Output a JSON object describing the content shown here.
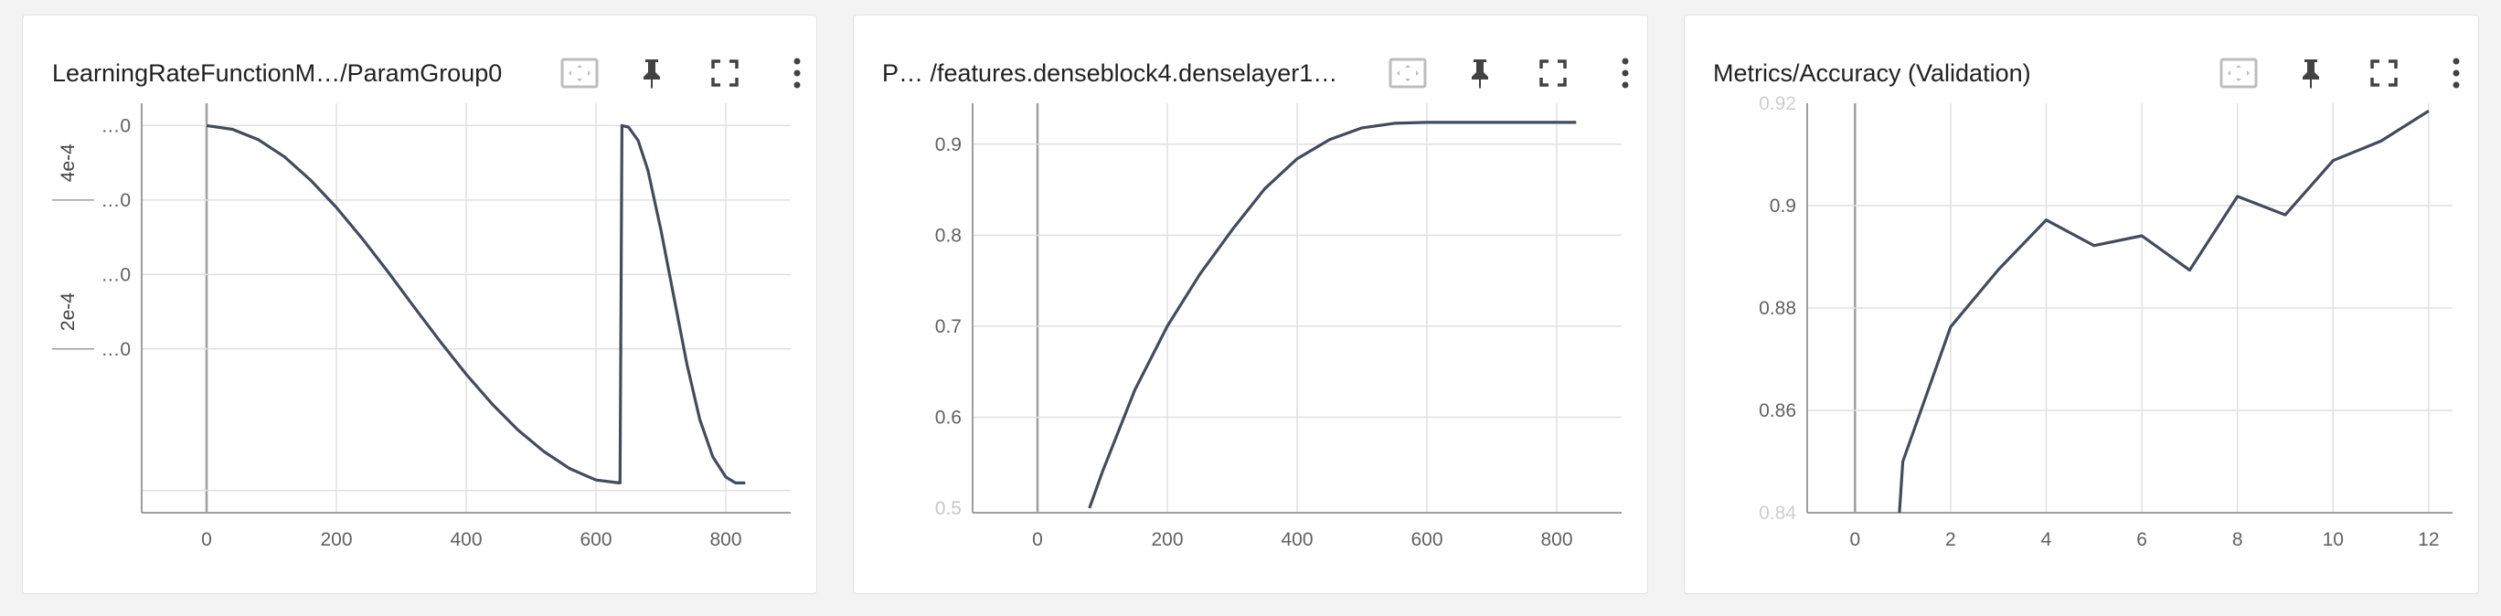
{
  "cards": [
    {
      "title": "LearningRateFunctionM…/ParamGroup0"
    },
    {
      "title": "P…  /features.denseblock4.denselayer1…"
    },
    {
      "title": "Metrics/Accuracy (Validation)"
    }
  ],
  "chart_data": [
    {
      "type": "line",
      "title": "LearningRateFunctionM…/ParamGroup0",
      "x_ticks": [
        "0",
        "200",
        "400",
        "600",
        "800"
      ],
      "y_tick_labels": [
        "…0",
        "…0",
        "…0",
        "…0"
      ],
      "y_side_labels": [
        "4e-4",
        "2e-4"
      ],
      "xlim": [
        -100,
        900
      ],
      "ylim": [
        -2e-05,
        0.00053
      ],
      "grid": true,
      "series": [
        {
          "x": [
            0,
            40,
            80,
            120,
            160,
            200,
            240,
            280,
            320,
            360,
            400,
            440,
            480,
            520,
            560,
            600,
            636,
            637,
            640,
            650,
            665,
            680,
            700,
            720,
            740,
            760,
            780,
            800,
            815,
            830
          ],
          "y": [
            0.0005,
            0.000495,
            0.000481,
            0.000458,
            0.000427,
            0.00039,
            0.000348,
            0.000303,
            0.000256,
            0.00021,
            0.000166,
            0.000126,
            9.1e-05,
            6.2e-05,
            3.9e-05,
            2.4e-05,
            2e-05,
            2e-05,
            0.0005,
            0.000498,
            0.00048,
            0.00044,
            0.00036,
            0.00027,
            0.00018,
            0.000105,
            5.5e-05,
            2.8e-05,
            2e-05,
            2e-05
          ]
        }
      ]
    },
    {
      "type": "line",
      "title": "P…  /features.denseblock4.denselayer1…",
      "x_ticks": [
        "0",
        "200",
        "400",
        "600",
        "800"
      ],
      "y_ticks": [
        0.6,
        0.7,
        0.8,
        0.9
      ],
      "y_cut_label": "0.5",
      "xlim": [
        -100,
        900
      ],
      "ylim": [
        0.495,
        0.945
      ],
      "grid": true,
      "series": [
        {
          "x": [
            80,
            100,
            150,
            200,
            250,
            300,
            350,
            400,
            450,
            500,
            550,
            600,
            700,
            830
          ],
          "y": [
            0.5,
            0.54,
            0.63,
            0.7,
            0.757,
            0.806,
            0.851,
            0.884,
            0.905,
            0.918,
            0.923,
            0.924,
            0.924,
            0.924
          ]
        }
      ]
    },
    {
      "type": "line",
      "title": "Metrics/Accuracy (Validation)",
      "x_ticks": [
        "0",
        "2",
        "4",
        "6",
        "8",
        "10",
        "12"
      ],
      "y_ticks": [
        0.86,
        0.88,
        0.9
      ],
      "y_cut_labels": [
        "0.84",
        "0.92"
      ],
      "xlim": [
        -1,
        12.5
      ],
      "ylim": [
        0.84,
        0.92
      ],
      "grid": true,
      "series": [
        {
          "x": [
            0.93,
            1,
            2,
            3,
            4,
            5,
            6,
            7,
            8,
            9,
            10,
            11,
            12
          ],
          "y": [
            0.84,
            0.85,
            0.8763,
            0.8875,
            0.8972,
            0.8922,
            0.8941,
            0.8874,
            0.9018,
            0.8982,
            0.9088,
            0.9126,
            0.9185
          ]
        }
      ]
    }
  ]
}
